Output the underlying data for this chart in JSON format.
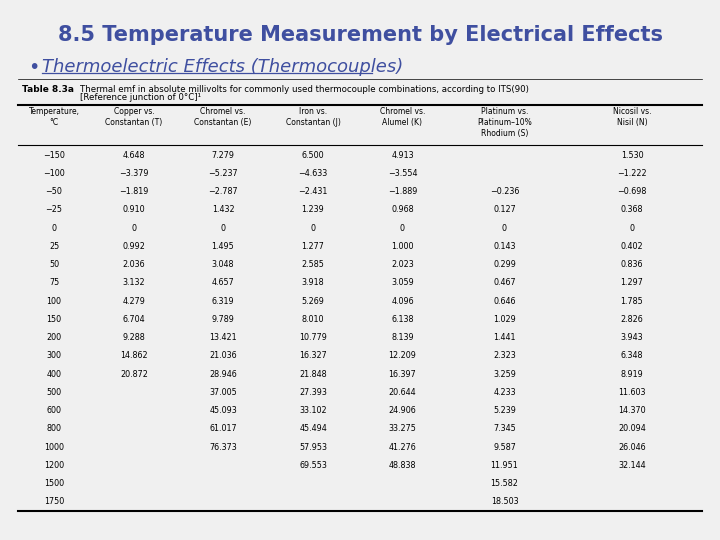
{
  "title": "8.5 Temperature Measurement by Electrical Effects",
  "bullet": "Thermoelectric Effects (Thermocouples)",
  "title_color": "#3f4fa0",
  "bullet_color": "#3f4fa0",
  "background_color": "#f0f0f0",
  "table_caption_bold": "Table 8.3a",
  "table_caption_line1": "Thermal emf in absolute millivolts for commonly used thermocouple combinations, according to ITS(90)",
  "table_caption_line2": "[Reference junction of 0°C]¹",
  "col_headers": [
    "Temperature,\n°C",
    "Copper vs.\nConstantan (T)",
    "Chromel vs.\nConstantan (E)",
    "Iron vs.\nConstantan (J)",
    "Chromel vs.\nAlumel (K)",
    "Platinum vs.\nPlatinum–10%\nRhodium (S)",
    "Nicosil vs.\nNisil (N)"
  ],
  "rows": [
    [
      "−150",
      "4.648",
      "7.279",
      "6.500",
      "4.913",
      "",
      "1.530"
    ],
    [
      "−100",
      "−3.379",
      "−5.237",
      "−4.633",
      "−3.554",
      "",
      "−1.222"
    ],
    [
      "−50",
      "−1.819",
      "−2.787",
      "−2.431",
      "−1.889",
      "−0.236",
      "−0.698"
    ],
    [
      "−25",
      "0.910",
      "1.432",
      "1.239",
      "0.968",
      "0.127",
      "0.368"
    ],
    [
      "0",
      "0",
      "0",
      "0",
      "0",
      "0",
      "0"
    ],
    [
      "25",
      "0.992",
      "1.495",
      "1.277",
      "1.000",
      "0.143",
      "0.402"
    ],
    [
      "50",
      "2.036",
      "3.048",
      "2.585",
      "2.023",
      "0.299",
      "0.836"
    ],
    [
      "75",
      "3.132",
      "4.657",
      "3.918",
      "3.059",
      "0.467",
      "1.297"
    ],
    [
      "100",
      "4.279",
      "6.319",
      "5.269",
      "4.096",
      "0.646",
      "1.785"
    ],
    [
      "150",
      "6.704",
      "9.789",
      "8.010",
      "6.138",
      "1.029",
      "2.826"
    ],
    [
      "200",
      "9.288",
      "13.421",
      "10.779",
      "8.139",
      "1.441",
      "3.943"
    ],
    [
      "300",
      "14.862",
      "21.036",
      "16.327",
      "12.209",
      "2.323",
      "6.348"
    ],
    [
      "400",
      "20.872",
      "28.946",
      "21.848",
      "16.397",
      "3.259",
      "8.919"
    ],
    [
      "500",
      "",
      "37.005",
      "27.393",
      "20.644",
      "4.233",
      "11.603"
    ],
    [
      "600",
      "",
      "45.093",
      "33.102",
      "24.906",
      "5.239",
      "14.370"
    ],
    [
      "800",
      "",
      "61.017",
      "45.494",
      "33.275",
      "7.345",
      "20.094"
    ],
    [
      "1000",
      "",
      "76.373",
      "57.953",
      "41.276",
      "9.587",
      "26.046"
    ],
    [
      "1200",
      "",
      "",
      "69.553",
      "48.838",
      "11.951",
      "32.144"
    ],
    [
      "1500",
      "",
      "",
      "",
      "",
      "15.582",
      ""
    ],
    [
      "1750",
      "",
      "",
      "",
      "",
      "18.503",
      ""
    ]
  ]
}
